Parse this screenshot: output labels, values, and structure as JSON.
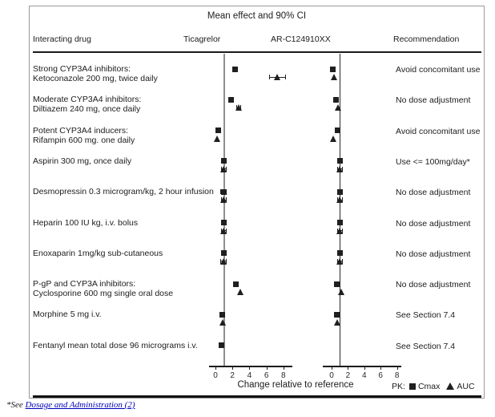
{
  "title": "Mean effect and 90% CI",
  "header": {
    "drug": "Interacting drug",
    "ticagrelor": "Ticagrelor",
    "arc": "AR-C124910XX",
    "recommendation": "Recommendation"
  },
  "x_axis_label": "Change relative to reference",
  "legend": {
    "prefix": "PK:",
    "cmax_label": "Cmax",
    "auc_label": "AUC"
  },
  "footnote": {
    "prefix": "*See ",
    "link_text": "Dosage and Administration (2)"
  },
  "colors": {
    "marker": "#1f1f1f",
    "ticagrelor_refline": "#8f8f8f",
    "arc_refline": "#262626",
    "frame_border": "#9a9a9a",
    "link": "#0000bb"
  },
  "chart_data": {
    "type": "scatter",
    "x_ticks": [
      0,
      2,
      4,
      6,
      8
    ],
    "axis_range": [
      0,
      9
    ],
    "reference_value": 1,
    "marker_legend": {
      "square": "Cmax",
      "triangle": "AUC"
    },
    "panels": [
      "Ticagrelor",
      "AR-C124910XX"
    ],
    "rows": [
      {
        "label_lines": [
          "Strong CYP3A4 inhibitors:",
          "Ketoconazole 200 mg, twice daily"
        ],
        "recommendation": "Avoid concomitant use",
        "ticagrelor": {
          "cmax": {
            "v": 2.3
          },
          "auc": {
            "v": 7.3,
            "lo": 6.3,
            "hi": 8.3
          }
        },
        "arc": {
          "cmax": {
            "v": 0.1
          },
          "auc": {
            "v": 0.35
          }
        }
      },
      {
        "label_lines": [
          "Moderate CYP3A4 inhibitors:",
          "Diltiazem 240 mg, once daily"
        ],
        "recommendation": "No dose adjustment",
        "ticagrelor": {
          "cmax": {
            "v": 1.85
          },
          "auc": {
            "v": 2.75,
            "lo": 2.45,
            "hi": 3.05
          }
        },
        "arc": {
          "cmax": {
            "v": 0.5
          },
          "auc": {
            "v": 0.8
          }
        }
      },
      {
        "label_lines": [
          "Potent CYP3A4 inducers:",
          "Rifampin 600 mg. one daily"
        ],
        "recommendation": "Avoid concomitant use",
        "ticagrelor": {
          "cmax": {
            "v": 0.35
          },
          "auc": {
            "v": 0.25
          }
        },
        "arc": {
          "cmax": {
            "v": 0.7
          },
          "auc": {
            "v": 0.2
          }
        }
      },
      {
        "label_lines": [
          "Aspirin 300 mg, once daily"
        ],
        "recommendation": "Use <= 100mg/day*",
        "ticagrelor": {
          "cmax": {
            "v": 1.0,
            "lo": 0.65,
            "hi": 1.35
          },
          "auc": {
            "v": 1.0,
            "lo": 0.65,
            "hi": 1.35
          }
        },
        "arc": {
          "cmax": {
            "v": 1.0,
            "lo": 0.65,
            "hi": 1.35
          },
          "auc": {
            "v": 1.0,
            "lo": 0.65,
            "hi": 1.35
          }
        }
      },
      {
        "label_lines": [
          "Desmopressin 0.3  microgram/kg, 2 hour infusion"
        ],
        "recommendation": "No dose adjustment",
        "ticagrelor": {
          "cmax": {
            "v": 0.95,
            "lo": 0.6,
            "hi": 1.3
          },
          "auc": {
            "v": 1.0,
            "lo": 0.65,
            "hi": 1.35
          }
        },
        "arc": {
          "cmax": {
            "v": 1.0,
            "lo": 0.65,
            "hi": 1.35
          },
          "auc": {
            "v": 1.0,
            "lo": 0.65,
            "hi": 1.35
          }
        }
      },
      {
        "label_lines": [
          "Heparin 100 IU kg, i.v. bolus"
        ],
        "recommendation": "No dose adjustment",
        "ticagrelor": {
          "cmax": {
            "v": 1.0,
            "lo": 0.65,
            "hi": 1.35
          },
          "auc": {
            "v": 1.0,
            "lo": 0.65,
            "hi": 1.35
          }
        },
        "arc": {
          "cmax": {
            "v": 1.0,
            "lo": 0.65,
            "hi": 1.35
          },
          "auc": {
            "v": 1.0,
            "lo": 0.65,
            "hi": 1.35
          }
        }
      },
      {
        "label_lines": [
          "Enoxaparin 1mg/kg sub-cutaneous"
        ],
        "recommendation": "No dose adjustment",
        "ticagrelor": {
          "cmax": {
            "v": 1.0,
            "lo": 0.65,
            "hi": 1.35
          },
          "auc": {
            "v": 0.95,
            "lo": 0.6,
            "hi": 1.3
          }
        },
        "arc": {
          "cmax": {
            "v": 1.0,
            "lo": 0.65,
            "hi": 1.35
          },
          "auc": {
            "v": 1.0,
            "lo": 0.65,
            "hi": 1.35
          }
        }
      },
      {
        "label_lines": [
          "P-gP and CYP3A inhibitors:",
          "Cyclosporine 600 mg single oral dose"
        ],
        "recommendation": "No dose adjustment",
        "ticagrelor": {
          "cmax": {
            "v": 2.4
          },
          "auc": {
            "v": 2.95
          }
        },
        "arc": {
          "cmax": {
            "v": 0.65
          },
          "auc": {
            "v": 1.25
          }
        }
      },
      {
        "label_lines": [
          "Morphine 5 mg i.v."
        ],
        "recommendation": "See Section 7.4",
        "ticagrelor": {
          "cmax": {
            "v": 0.8
          },
          "auc": {
            "v": 0.9
          }
        },
        "arc": {
          "cmax": {
            "v": 0.65
          },
          "auc": {
            "v": 0.75
          }
        }
      },
      {
        "label_lines": [
          "Fentanyl mean total dose 96 micrograms i.v."
        ],
        "recommendation": "See Section 7.4",
        "ticagrelor": {
          "cmax": {
            "v": 0.75
          },
          "auc": null
        },
        "arc": null
      }
    ]
  }
}
